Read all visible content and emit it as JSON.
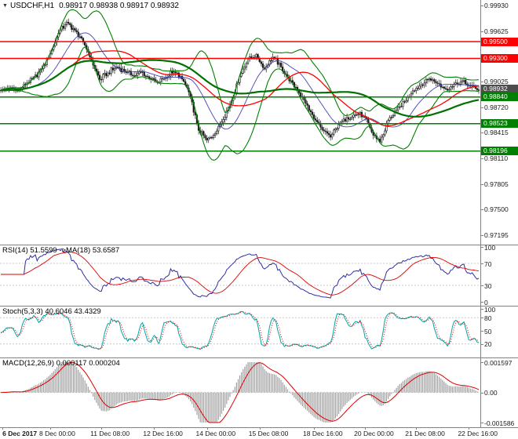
{
  "header": {
    "dropdown_icon": "▼",
    "symbol_period": "USDCHF,H1",
    "ohlc": "0.98917 0.98938 0.98917 0.98932"
  },
  "colors": {
    "resistance": "#fe0000",
    "support": "#008000",
    "current_price_badge": "#4d4d4d",
    "bollinger": "#008000",
    "bollinger_mid": "#4444b4",
    "ma_fast": "#ff0000",
    "ma_slow": "#007000",
    "candle_ink": "#1a1a1a",
    "rsi_line": "#2e2ea0",
    "rsi_ma": "#dd0000",
    "stoch_k": "#00a5a5",
    "stoch_d": "#dd0000",
    "macd_hist": "#a0a0a0",
    "macd_signal": "#dd0000",
    "level_dash": "#c8c8c8"
  },
  "chart_data": {
    "type": "candlestick+indicators",
    "symbol": "USDCHF",
    "timeframe": "H1",
    "title": "USDCHF,H1 0.98917 0.98938 0.98917 0.98932",
    "x_axis": {
      "labels": [
        {
          "text": "6 Dec 2017",
          "bar_index": 1
        },
        {
          "text": "8 Dec 00:00",
          "bar_index": 30
        },
        {
          "text": "11 Dec 08:00",
          "bar_index": 61
        },
        {
          "text": "12 Dec 16:00",
          "bar_index": 93
        },
        {
          "text": "14 Dec 00:00",
          "bar_index": 125
        },
        {
          "text": "15 Dec 08:00",
          "bar_index": 157
        },
        {
          "text": "18 Dec 16:00",
          "bar_index": 190
        },
        {
          "text": "20 Dec 00:00",
          "bar_index": 221
        },
        {
          "text": "21 Dec 08:00",
          "bar_index": 252
        },
        {
          "text": "22 Dec 16:00",
          "bar_index": 284
        }
      ]
    },
    "price_axis": {
      "ticks": [
        {
          "label": "0.99930",
          "value": 0.9993
        },
        {
          "label": "0.99625",
          "value": 0.99625
        },
        {
          "label": "0.99025",
          "value": 0.99025
        },
        {
          "label": "0.98720",
          "value": 0.9872
        },
        {
          "label": "0.98415",
          "value": 0.98415
        },
        {
          "label": "0.98110",
          "value": 0.9811
        },
        {
          "label": "0.97805",
          "value": 0.97805
        },
        {
          "label": "0.97500",
          "value": 0.975
        },
        {
          "label": "0.97195",
          "value": 0.97195
        }
      ],
      "levels": [
        {
          "label": "0.99500",
          "value": 0.995,
          "color": "#fe0000",
          "kind": "resistance"
        },
        {
          "label": "0.99300",
          "value": 0.993,
          "color": "#fe0000",
          "kind": "resistance"
        },
        {
          "label": "0.98932",
          "value": 0.98932,
          "color": "#4d4d4d",
          "kind": "current-price"
        },
        {
          "label": "0.98840",
          "value": 0.9884,
          "color": "#008000",
          "kind": "support"
        },
        {
          "label": "0.98523",
          "value": 0.98523,
          "color": "#008000",
          "kind": "support"
        },
        {
          "label": "0.98196",
          "value": 0.98196,
          "color": "#008000",
          "kind": "support"
        }
      ]
    },
    "price": {
      "last_close": 0.98932,
      "sample_step": 5,
      "close_samples": [
        0.9892,
        0.9895,
        0.9891,
        0.9899,
        0.9907,
        0.9918,
        0.9935,
        0.996,
        0.9973,
        0.9964,
        0.995,
        0.9928,
        0.9905,
        0.9912,
        0.992,
        0.9915,
        0.9909,
        0.9914,
        0.9907,
        0.9901,
        0.9908,
        0.9914,
        0.9906,
        0.9885,
        0.9844,
        0.9833,
        0.984,
        0.9858,
        0.988,
        0.9908,
        0.993,
        0.9934,
        0.9918,
        0.9932,
        0.992,
        0.9904,
        0.9893,
        0.9876,
        0.9858,
        0.9845,
        0.9837,
        0.9852,
        0.9859,
        0.9864,
        0.9862,
        0.9842,
        0.983,
        0.9856,
        0.9868,
        0.9879,
        0.9891,
        0.9899,
        0.9906,
        0.9901,
        0.9893,
        0.9899,
        0.9903,
        0.9897,
        0.98932
      ]
    },
    "indicators": {
      "rsi": {
        "label": "RSI(14) 51.5599 ->MA(18) 53.6587",
        "period": 14,
        "ma_period": 18,
        "value": 51.5599,
        "ma_value": 53.6587,
        "ticks": [
          {
            "label": "100",
            "value": 100
          },
          {
            "label": "70",
            "value": 70
          },
          {
            "label": "30",
            "value": 30
          },
          {
            "label": "0",
            "value": 0
          }
        ],
        "level_lines": [
          70,
          30
        ]
      },
      "stoch": {
        "label": "Stoch(5,3,3) 40.6046 43.4329",
        "k_period": 5,
        "d_period": 3,
        "slowing": 3,
        "value_k": 40.6046,
        "value_d": 43.4329,
        "ticks": [
          {
            "label": "100",
            "value": 100
          },
          {
            "label": "80",
            "value": 80
          },
          {
            "label": "50",
            "value": 50
          },
          {
            "label": "20",
            "value": 20
          }
        ],
        "level_lines": [
          80,
          20
        ]
      },
      "macd": {
        "label": "MACD(12,26,9) 0.000117 0.000204",
        "fast": 12,
        "slow": 26,
        "signal_period": 9,
        "value": 0.000117,
        "signal": 0.000204,
        "ticks": [
          {
            "label": "0.001597",
            "value": 0.001597
          },
          {
            "label": "0.00",
            "value": 0
          },
          {
            "label": "-0.001586",
            "value": -0.001586
          }
        ],
        "range": [
          -0.001586,
          0.001597
        ],
        "level_lines": [
          0
        ]
      }
    }
  }
}
